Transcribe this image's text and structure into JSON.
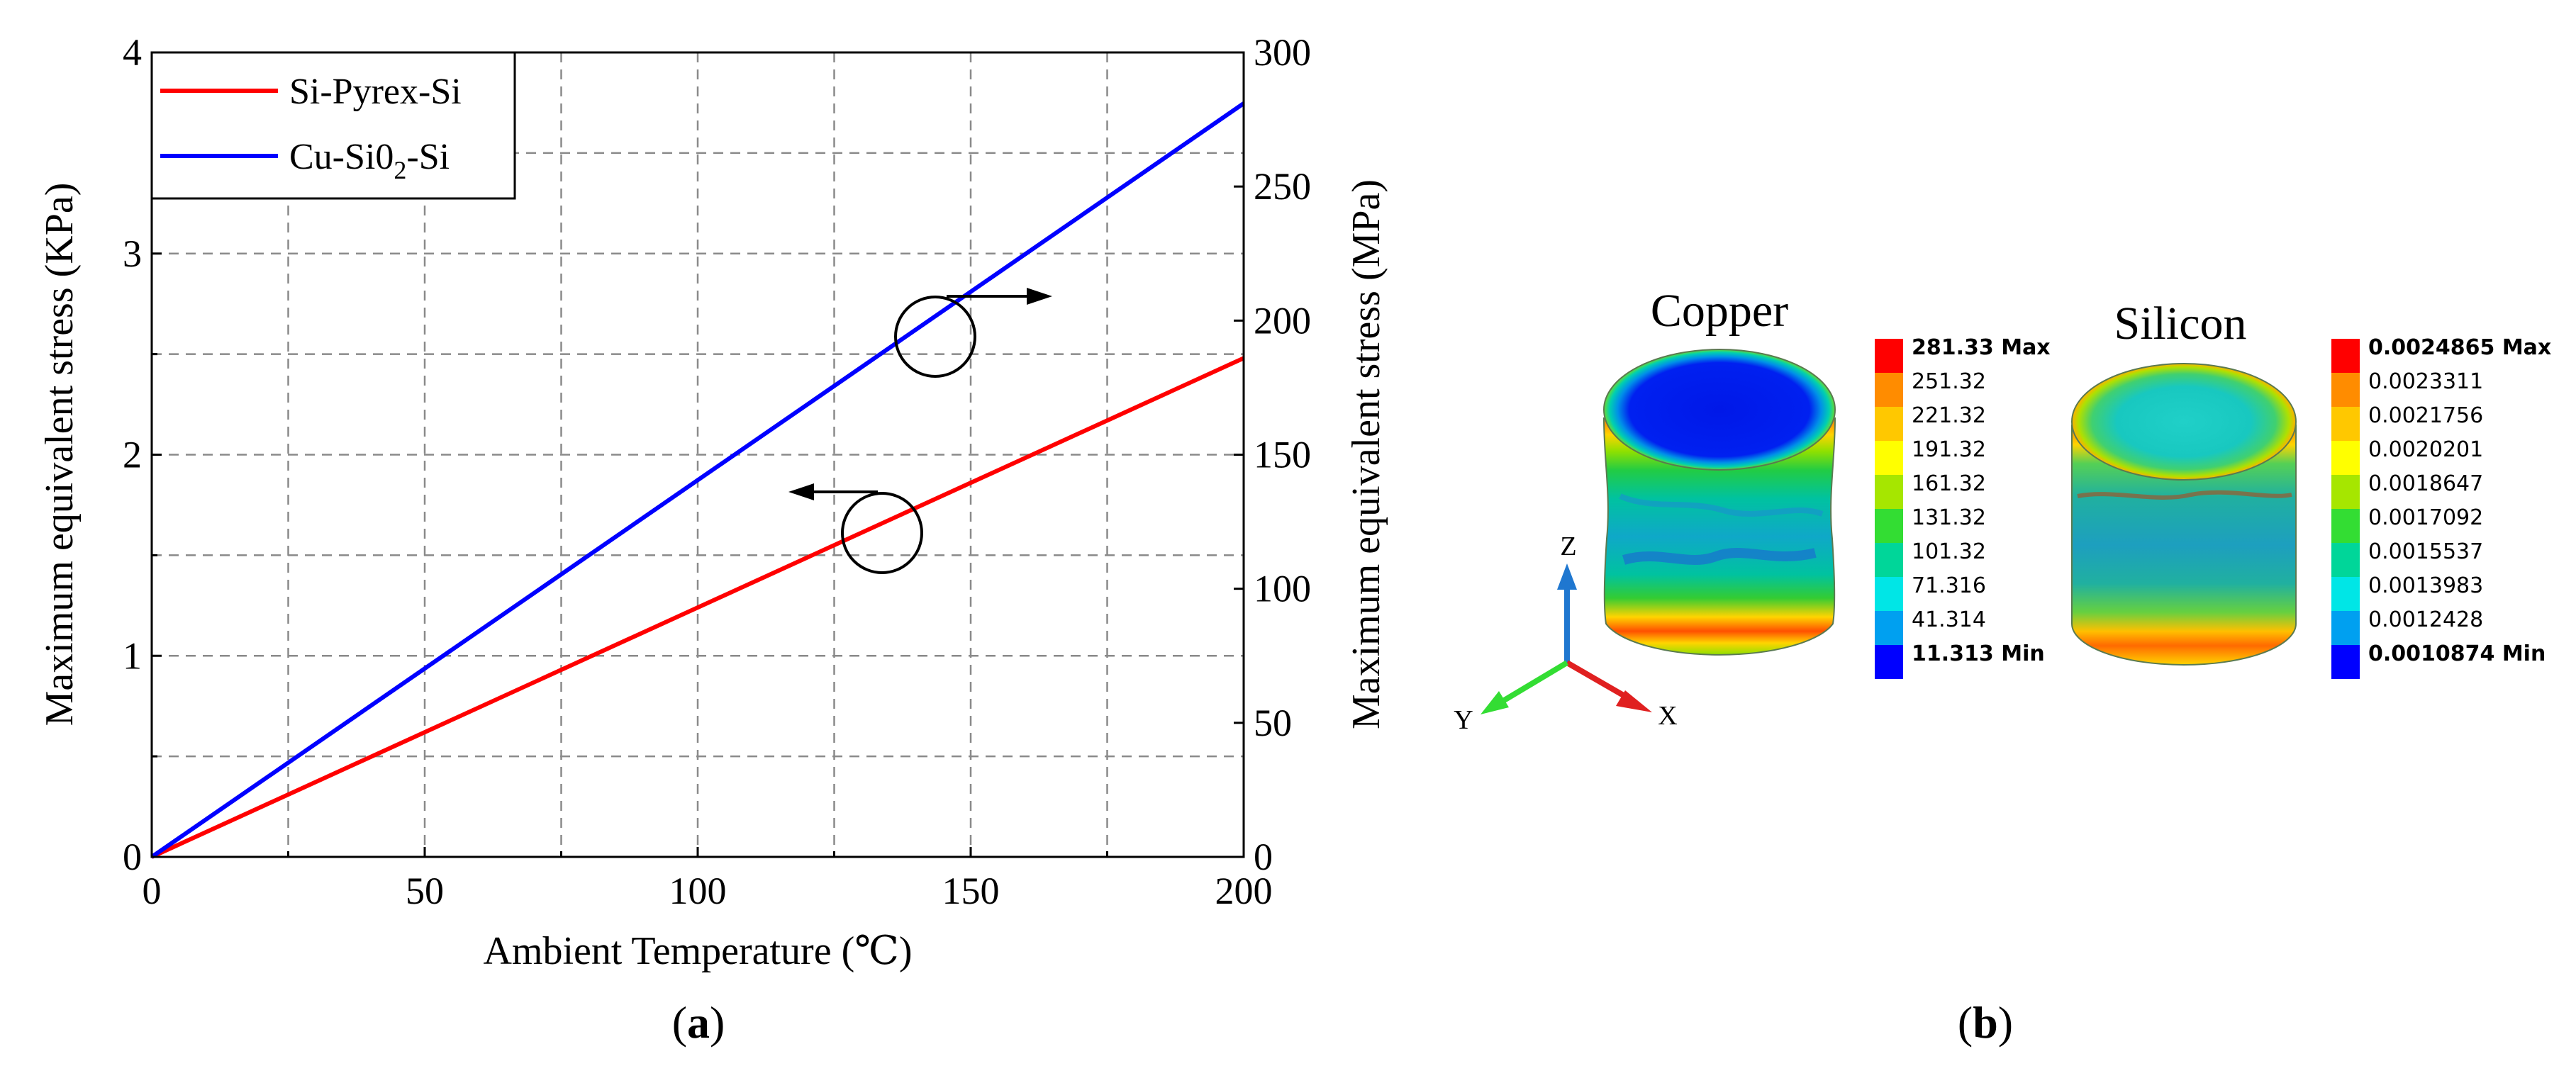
{
  "panel_a": {
    "label_open": "(",
    "label_letter": "a",
    "label_close": ")"
  },
  "panel_b": {
    "label_open": "(",
    "label_letter": "b",
    "label_close": ")",
    "copper_title": "Copper",
    "silicon_title": "Silicon",
    "axis_labels": {
      "z": "Z",
      "y": "Y",
      "x": "X"
    },
    "colors": [
      "#ff0000",
      "#ff8c00",
      "#ffc800",
      "#ffff00",
      "#a6e600",
      "#33dd33",
      "#00d699",
      "#00e6e6",
      "#00a0f0",
      "#0000ff"
    ],
    "copper_legend": [
      "281.33 Max",
      "251.32",
      "221.32",
      "191.32",
      "161.32",
      "131.32",
      "101.32",
      "71.316",
      "41.314",
      "11.313 Min"
    ],
    "silicon_legend": [
      "0.0024865 Max",
      "0.0023311",
      "0.0021756",
      "0.0020201",
      "0.0018647",
      "0.0017092",
      "0.0015537",
      "0.0013983",
      "0.0012428",
      "0.0010874 Min"
    ]
  },
  "chart_data": {
    "type": "line",
    "xlabel": "Ambient Temperature (℃)",
    "ylabel": "Maximum equivalent stress (KPa)",
    "y2label": "Maximum equivalent stress (MPa)",
    "xlim": [
      0,
      200
    ],
    "ylim": [
      0,
      4
    ],
    "y2lim": [
      0,
      300
    ],
    "xticks": [
      "0",
      "50",
      "100",
      "150",
      "200"
    ],
    "yticks": [
      "0",
      "1",
      "2",
      "3",
      "4"
    ],
    "y2ticks": [
      "0",
      "50",
      "100",
      "150",
      "200",
      "250",
      "300"
    ],
    "grid": true,
    "legend_position": "top-left",
    "series": [
      {
        "name": "Si-Pyrex-Si",
        "axis": "left",
        "color": "#ff0000",
        "x": [
          0,
          200
        ],
        "y": [
          0,
          2.48
        ]
      },
      {
        "name": "Cu-Si0",
        "name_subscript": "2",
        "name_suffix": "-Si",
        "axis": "right",
        "color": "#0000ff",
        "x": [
          0,
          200
        ],
        "y": [
          0,
          281
        ]
      }
    ]
  }
}
